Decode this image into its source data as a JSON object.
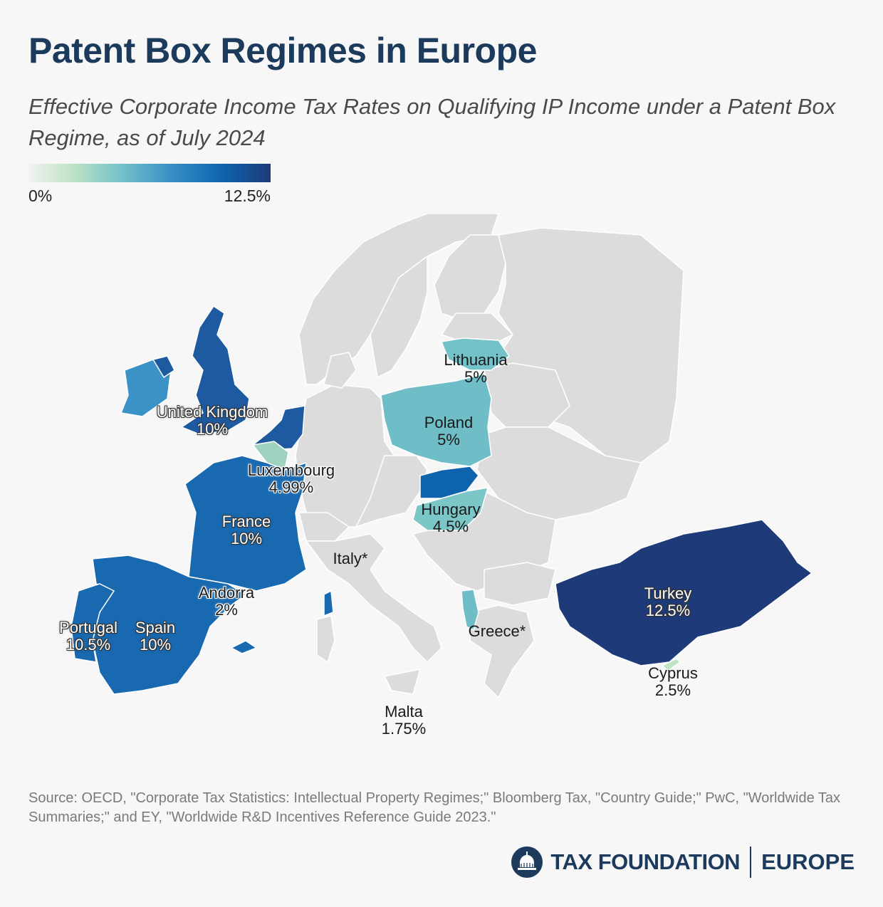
{
  "title": "Patent Box Regimes in Europe",
  "subtitle": "Effective Corporate Income Tax Rates on Qualifying IP Income under a Patent Box Regime, as of July 2024",
  "legend": {
    "min_label": "0%",
    "max_label": "12.5%",
    "min_value": 0,
    "max_value": 12.5
  },
  "colors": {
    "no_regime": "#dcdcdc",
    "border": "#ffffff",
    "scale": [
      "#f2f2f0",
      "#bfe3c5",
      "#74c2c9",
      "#3a92c6",
      "#0d64ad",
      "#1e3a78"
    ]
  },
  "countries": [
    {
      "name": "Lithuania",
      "rate_label": "5%",
      "rate": 5
    },
    {
      "name": "Poland",
      "rate_label": "5%",
      "rate": 5
    },
    {
      "name": "United Kingdom",
      "rate_label": "10%",
      "rate": 10
    },
    {
      "name": "Luxembourg",
      "rate_label": "4.99%",
      "rate": 4.99
    },
    {
      "name": "Hungary",
      "rate_label": "4.5%",
      "rate": 4.5
    },
    {
      "name": "France",
      "rate_label": "10%",
      "rate": 10
    },
    {
      "name": "Italy*",
      "rate_label": "",
      "rate": null
    },
    {
      "name": "Andorra",
      "rate_label": "2%",
      "rate": 2
    },
    {
      "name": "Turkey",
      "rate_label": "12.5%",
      "rate": 12.5
    },
    {
      "name": "Portugal",
      "rate_label": "10.5%",
      "rate": 10.5
    },
    {
      "name": "Spain",
      "rate_label": "10%",
      "rate": 10
    },
    {
      "name": "Greece*",
      "rate_label": "",
      "rate": null
    },
    {
      "name": "Cyprus",
      "rate_label": "2.5%",
      "rate": 2.5
    },
    {
      "name": "Malta",
      "rate_label": "1.75%",
      "rate": 1.75
    }
  ],
  "source": "Source: OECD, \"Corporate Tax Statistics: Intellectual Property Regimes;\" Bloomberg Tax, \"Country Guide;\" PwC, \"Worldwide Tax Summaries;\" and EY, \"Worldwide R&D Incentives Reference Guide 2023.\"",
  "logo": {
    "brand": "TAX FOUNDATION",
    "region": "EUROPE",
    "icon": "capitol-dome-icon"
  }
}
